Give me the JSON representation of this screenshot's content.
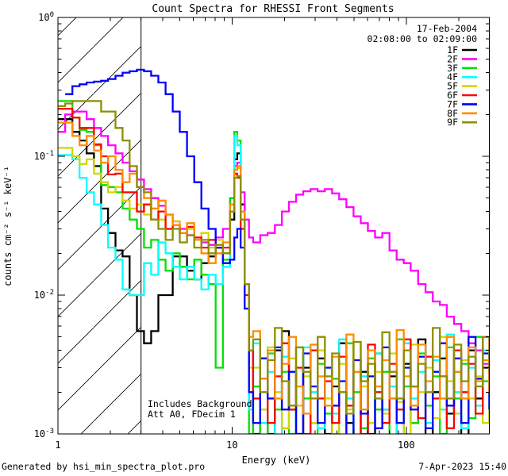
{
  "title": "Count Spectra for RHESSI Front Segments",
  "annotations": {
    "date": "17-Feb-2004",
    "time_range": "02:08:00 to 02:09:00",
    "note_line1": "Includes Background",
    "note_line2": "Att A0, FDecim 1",
    "generated_by": "Generated by hsi_min_spectra_plot.pro",
    "timestamp": "7-Apr-2023 15:40"
  },
  "chart_data": {
    "type": "line",
    "subtype": "step-histogram-spectra",
    "title": "Count Spectra for RHESSI Front Segments",
    "xlabel": "Energy (keV)",
    "ylabel": "counts cm⁻² s⁻¹ keV⁻¹",
    "xscale": "log",
    "yscale": "log",
    "xlim": [
      1,
      300
    ],
    "ylim": [
      0.001,
      1
    ],
    "grid": false,
    "legend_position": "top-right",
    "x_ticks": [
      {
        "value": 1,
        "label": "1"
      },
      {
        "value": 10,
        "label": "10"
      },
      {
        "value": 100,
        "label": "100"
      }
    ],
    "y_ticks": [
      {
        "value": 1,
        "base": "10",
        "exp": "0"
      },
      {
        "value": 0.1,
        "base": "10",
        "exp": "-1"
      },
      {
        "value": 0.01,
        "base": "10",
        "exp": "-2"
      },
      {
        "value": 0.001,
        "base": "10",
        "exp": "-3"
      }
    ],
    "hatch_region": {
      "x_min": 1,
      "x_max": 3
    },
    "x": [
      1.0,
      1.1,
      1.21,
      1.33,
      1.46,
      1.61,
      1.77,
      1.94,
      2.14,
      2.35,
      2.58,
      2.84,
      3.12,
      3.43,
      3.77,
      4.15,
      4.56,
      5.01,
      5.51,
      6.06,
      6.66,
      7.32,
      8.05,
      8.85,
      9.73,
      10.3,
      10.7,
      11.2,
      11.8,
      12.5,
      13.2,
      14.5,
      16.0,
      17.6,
      19.3,
      21.2,
      23.3,
      25.6,
      28.2,
      31.0,
      34.1,
      37.5,
      41.2,
      45.3,
      49.8,
      54.8,
      60.2,
      66.2,
      72.8,
      80.1,
      88.1,
      96.8,
      106,
      117,
      129,
      142,
      156,
      171,
      188,
      207,
      228,
      250,
      275,
      300
    ],
    "series": [
      {
        "name": "1F",
        "color": "#000000",
        "y": [
          0.185,
          0.185,
          0.15,
          0.13,
          0.105,
          0.085,
          0.042,
          0.028,
          0.021,
          0.019,
          0.01,
          0.0055,
          0.0045,
          0.0055,
          0.01,
          0.01,
          0.019,
          0.019,
          0.015,
          0.013,
          0.017,
          0.019,
          0.022,
          0.02,
          0.035,
          0.095,
          0.105,
          0.045,
          0.012,
          0.004,
          0.001,
          0.0025,
          0.001,
          0.004,
          0.0055,
          0.0015,
          0.001,
          0.003,
          0.0012,
          0.0035,
          0.001,
          0.0022,
          0.0045,
          0.0012,
          0.0009,
          0.0028,
          0.001,
          0.0038,
          0.0015,
          0.0026,
          0.0009,
          0.0032,
          0.0012,
          0.0048,
          0.0009,
          0.002,
          0.0035,
          0.0014,
          0.0028,
          0.0009,
          0.004,
          0.0018,
          0.003,
          0.0012
        ]
      },
      {
        "name": "2F",
        "color": "#FF00FF",
        "y": [
          0.15,
          0.2,
          0.21,
          0.21,
          0.185,
          0.16,
          0.14,
          0.12,
          0.105,
          0.09,
          0.078,
          0.068,
          0.058,
          0.05,
          0.044,
          0.038,
          0.034,
          0.03,
          0.027,
          0.025,
          0.024,
          0.023,
          0.026,
          0.03,
          0.05,
          0.085,
          0.09,
          0.055,
          0.035,
          0.026,
          0.024,
          0.027,
          0.028,
          0.032,
          0.04,
          0.047,
          0.053,
          0.056,
          0.058,
          0.056,
          0.058,
          0.054,
          0.049,
          0.043,
          0.037,
          0.033,
          0.029,
          0.026,
          0.028,
          0.021,
          0.018,
          0.017,
          0.015,
          0.012,
          0.0105,
          0.009,
          0.0085,
          0.007,
          0.0062,
          0.0055,
          0.0045,
          0.004,
          0.0032,
          0.003
        ]
      },
      {
        "name": "3F",
        "color": "#00E000",
        "y": [
          0.25,
          0.25,
          0.19,
          0.155,
          0.15,
          0.12,
          0.062,
          0.06,
          0.055,
          0.042,
          0.035,
          0.03,
          0.022,
          0.025,
          0.018,
          0.015,
          0.02,
          0.016,
          0.013,
          0.018,
          0.014,
          0.012,
          0.003,
          0.018,
          0.05,
          0.15,
          0.13,
          0.04,
          0.008,
          0.001,
          0.0022,
          0.0009,
          0.0038,
          0.0015,
          0.0028,
          0.001,
          0.0042,
          0.0018,
          0.0009,
          0.0032,
          0.0014,
          0.0025,
          0.0009,
          0.0045,
          0.002,
          0.0011,
          0.0035,
          0.0015,
          0.0028,
          0.0009,
          0.0048,
          0.0022,
          0.0012,
          0.0038,
          0.0016,
          0.0026,
          0.001,
          0.0042,
          0.0018,
          0.0032,
          0.0013,
          0.005,
          0.0024,
          0.0015
        ]
      },
      {
        "name": "4F",
        "color": "#00FFFF",
        "y": [
          0.102,
          0.102,
          0.095,
          0.07,
          0.055,
          0.045,
          0.032,
          0.022,
          0.018,
          0.011,
          0.01,
          0.01,
          0.017,
          0.014,
          0.024,
          0.02,
          0.016,
          0.013,
          0.016,
          0.013,
          0.011,
          0.014,
          0.012,
          0.016,
          0.045,
          0.14,
          0.12,
          0.035,
          0.008,
          0.0015,
          0.0045,
          0.0012,
          0.0028,
          0.0009,
          0.0036,
          0.0016,
          0.001,
          0.0042,
          0.002,
          0.0011,
          0.003,
          0.0014,
          0.0048,
          0.0018,
          0.0009,
          0.0026,
          0.0012,
          0.0038,
          0.0015,
          0.0022,
          0.001,
          0.0045,
          0.0018,
          0.0028,
          0.0012,
          0.0034,
          0.0015,
          0.0052,
          0.002,
          0.0011,
          0.003,
          0.0016,
          0.004,
          0.0022
        ]
      },
      {
        "name": "5F",
        "color": "#D4D400",
        "y": [
          0.115,
          0.115,
          0.1,
          0.088,
          0.095,
          0.075,
          0.065,
          0.055,
          0.06,
          0.048,
          0.042,
          0.045,
          0.038,
          0.042,
          0.035,
          0.03,
          0.034,
          0.028,
          0.03,
          0.025,
          0.028,
          0.022,
          0.025,
          0.02,
          0.045,
          0.08,
          0.082,
          0.035,
          0.01,
          0.003,
          0.003,
          0.0015,
          0.0042,
          0.002,
          0.0011,
          0.0035,
          0.0016,
          0.0026,
          0.0012,
          0.004,
          0.0018,
          0.001,
          0.0032,
          0.0015,
          0.0046,
          0.0022,
          0.0012,
          0.0028,
          0.0014,
          0.0038,
          0.0017,
          0.001,
          0.0044,
          0.002,
          0.003,
          0.0013,
          0.005,
          0.0024,
          0.0014,
          0.0034,
          0.0018,
          0.0026,
          0.0012,
          0.0042
        ]
      },
      {
        "name": "6F",
        "color": "#FF0000",
        "y": [
          0.22,
          0.22,
          0.19,
          0.16,
          0.16,
          0.122,
          0.1,
          0.074,
          0.075,
          0.055,
          0.055,
          0.04,
          0.045,
          0.035,
          0.04,
          0.03,
          0.032,
          0.028,
          0.031,
          0.026,
          0.022,
          0.025,
          0.022,
          0.022,
          0.04,
          0.075,
          0.07,
          0.03,
          0.01,
          0.004,
          0.0018,
          0.0035,
          0.0012,
          0.0026,
          0.0045,
          0.0015,
          0.003,
          0.001,
          0.004,
          0.0018,
          0.0024,
          0.0012,
          0.0036,
          0.0016,
          0.0028,
          0.001,
          0.0044,
          0.002,
          0.0012,
          0.0032,
          0.0015,
          0.0048,
          0.0022,
          0.0013,
          0.0036,
          0.0018,
          0.0026,
          0.0011,
          0.004,
          0.002,
          0.0032,
          0.0014,
          0.005,
          0.002
        ]
      },
      {
        "name": "7F",
        "color": "#0000FF",
        "y": [
          null,
          0.28,
          0.32,
          0.33,
          0.34,
          0.345,
          0.35,
          0.36,
          0.38,
          0.4,
          0.41,
          0.42,
          0.41,
          0.38,
          0.34,
          0.28,
          0.21,
          0.15,
          0.1,
          0.065,
          0.042,
          0.03,
          0.022,
          0.017,
          0.018,
          0.026,
          0.03,
          0.022,
          0.008,
          0.002,
          0.0012,
          0.0035,
          0.0018,
          0.0042,
          0.0015,
          0.0028,
          0.001,
          0.0038,
          0.0022,
          0.0012,
          0.003,
          0.0016,
          0.0024,
          0.0009,
          0.0034,
          0.0014,
          0.0026,
          0.0011,
          0.0042,
          0.0018,
          0.0012,
          0.003,
          0.0015,
          0.0036,
          0.0011,
          0.0028,
          0.0045,
          0.0016,
          0.0035,
          0.0012,
          0.005,
          0.0025,
          0.0038,
          0.0015
        ]
      },
      {
        "name": "8F",
        "color": "#FF8C00",
        "y": [
          0.175,
          0.175,
          0.14,
          0.12,
          0.14,
          0.11,
          0.09,
          0.1,
          0.08,
          0.065,
          0.075,
          0.06,
          0.05,
          0.042,
          0.048,
          0.038,
          0.032,
          0.028,
          0.033,
          0.025,
          0.02,
          0.017,
          0.02,
          0.024,
          0.045,
          0.08,
          0.085,
          0.04,
          0.012,
          0.005,
          0.0055,
          0.0025,
          0.004,
          0.0018,
          0.0032,
          0.005,
          0.0022,
          0.0014,
          0.0044,
          0.0026,
          0.0016,
          0.0036,
          0.002,
          0.0052,
          0.0028,
          0.0015,
          0.004,
          0.0022,
          0.0034,
          0.0018,
          0.0056,
          0.0026,
          0.0016,
          0.0044,
          0.0024,
          0.0036,
          0.0018,
          0.005,
          0.0028,
          0.0018,
          0.0042,
          0.0024,
          0.0034,
          0.002
        ]
      },
      {
        "name": "9F",
        "color": "#8E8E00",
        "y": [
          0.23,
          0.24,
          0.25,
          0.25,
          0.25,
          0.25,
          0.21,
          0.21,
          0.16,
          0.13,
          0.085,
          0.06,
          0.055,
          0.035,
          0.03,
          0.025,
          0.03,
          0.024,
          0.027,
          0.022,
          0.025,
          0.02,
          0.023,
          0.02,
          0.04,
          0.07,
          0.072,
          0.035,
          0.012,
          0.004,
          0.0048,
          0.002,
          0.0034,
          0.0058,
          0.0024,
          0.0016,
          0.0042,
          0.0028,
          0.0018,
          0.005,
          0.0026,
          0.0038,
          0.002,
          0.0014,
          0.0046,
          0.0024,
          0.0032,
          0.0018,
          0.0054,
          0.0028,
          0.0018,
          0.004,
          0.0022,
          0.0032,
          0.002,
          0.0058,
          0.0026,
          0.0018,
          0.0044,
          0.0024,
          0.0036,
          0.0022,
          0.005,
          0.0028
        ]
      }
    ]
  }
}
